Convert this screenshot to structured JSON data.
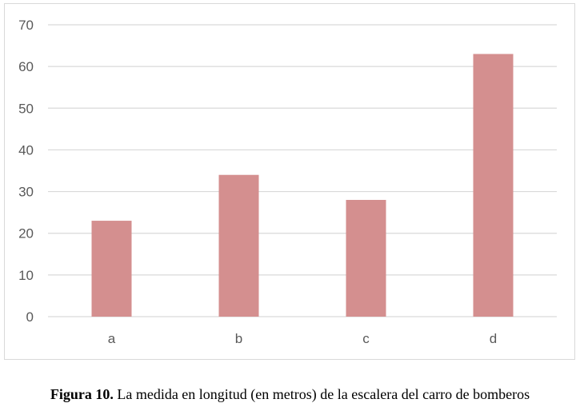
{
  "chart_data": {
    "type": "bar",
    "categories": [
      "a",
      "b",
      "c",
      "d"
    ],
    "values": [
      23,
      34,
      28,
      63
    ],
    "ylim": [
      0,
      70
    ],
    "yticks": [
      0,
      10,
      20,
      30,
      40,
      50,
      60,
      70
    ],
    "grid": true,
    "bar_color": "#d48f8f",
    "grid_color": "#d9d9d9"
  },
  "caption": {
    "label": "Figura 10.",
    "text": "La medida en longitud (en metros) de la escalera del carro de bomberos"
  }
}
